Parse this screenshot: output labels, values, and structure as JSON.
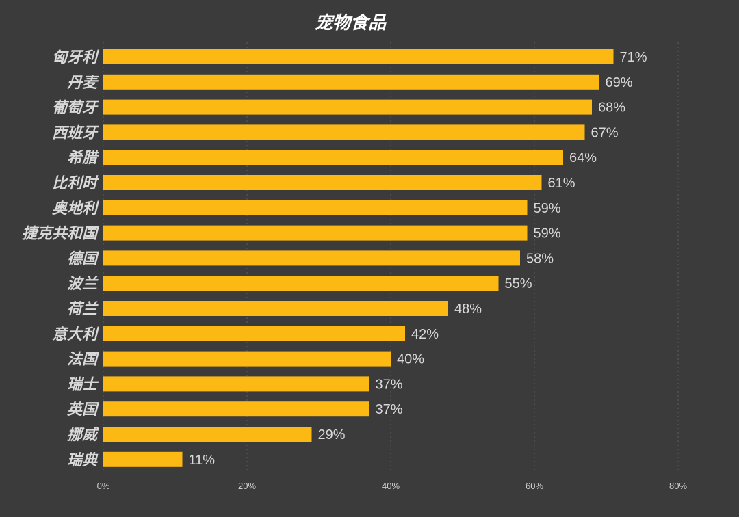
{
  "chart_data": {
    "type": "bar",
    "orientation": "horizontal",
    "title": "宠物食品",
    "categories": [
      "匈牙利",
      "丹麦",
      "葡萄牙",
      "西班牙",
      "希腊",
      "比利时",
      "奥地利",
      "捷克共和国",
      "德国",
      "波兰",
      "荷兰",
      "意大利",
      "法国",
      "瑞士",
      "英国",
      "挪威",
      "瑞典"
    ],
    "values": [
      71,
      69,
      68,
      67,
      64,
      61,
      59,
      59,
      58,
      55,
      48,
      42,
      40,
      37,
      37,
      29,
      11
    ],
    "value_labels": [
      "71%",
      "69%",
      "68%",
      "67%",
      "64%",
      "61%",
      "59%",
      "59%",
      "58%",
      "55%",
      "48%",
      "42%",
      "40%",
      "37%",
      "37%",
      "29%",
      "11%"
    ],
    "xlim": [
      0,
      80
    ],
    "xticks": [
      0,
      20,
      40,
      60,
      80
    ],
    "xtick_labels": [
      "0%",
      "20%",
      "40%",
      "60%",
      "80%"
    ],
    "xlabel": "",
    "ylabel": "",
    "grid": "vertical dotted",
    "legend": "none"
  },
  "colors": {
    "background": "#3b3b3b",
    "bar": "#fdb913",
    "grid": "#5e5e5e",
    "text": "#d9d9d9",
    "title": "#ffffff"
  }
}
